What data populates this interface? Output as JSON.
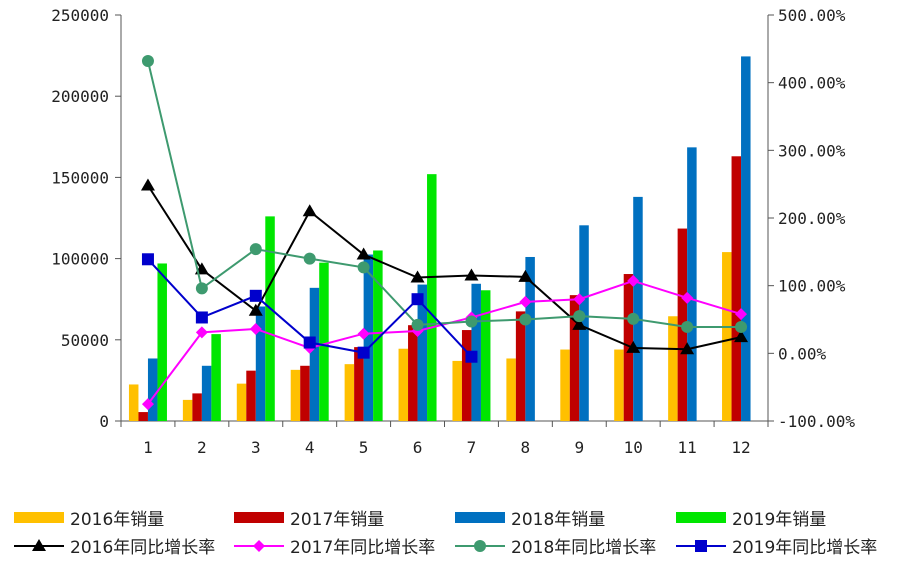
{
  "chart_data": {
    "type": "bar",
    "categories": [
      "1",
      "2",
      "3",
      "4",
      "5",
      "6",
      "7",
      "8",
      "9",
      "10",
      "11",
      "12"
    ],
    "y_left": {
      "range": [
        0,
        250000
      ],
      "ticks": [
        "0",
        "50000",
        "100000",
        "150000",
        "200000",
        "250000"
      ],
      "tick_values": [
        0,
        50000,
        100000,
        150000,
        200000,
        250000
      ]
    },
    "y_right": {
      "range": [
        -100,
        500
      ],
      "ticks": [
        "-100.00%",
        "0.00%",
        "100.00%",
        "200.00%",
        "300.00%",
        "400.00%",
        "500.00%"
      ],
      "tick_values": [
        -100,
        0,
        100,
        200,
        300,
        400,
        500
      ]
    },
    "bar_series": [
      {
        "name": "2016年销量",
        "color": "#FFC000",
        "values": [
          22500,
          13000,
          23000,
          31500,
          35000,
          44500,
          37000,
          38500,
          44000,
          44000,
          64500,
          104000
        ]
      },
      {
        "name": "2017年销量",
        "color": "#C00000",
        "values": [
          5500,
          17000,
          31000,
          34000,
          45500,
          59000,
          56000,
          67500,
          77500,
          90500,
          118500,
          163000
        ]
      },
      {
        "name": "2018年销量",
        "color": "#0070C0",
        "values": [
          38500,
          34000,
          70500,
          82000,
          102500,
          84000,
          84500,
          101000,
          120500,
          138000,
          168500,
          224500
        ]
      },
      {
        "name": "2019年销量",
        "color": "#00E600",
        "values": [
          97000,
          53500,
          126000,
          97500,
          105000,
          152000,
          80500,
          null,
          null,
          null,
          null,
          null
        ]
      }
    ],
    "line_series": [
      {
        "name": "2016年同比增长率",
        "color": "#000000",
        "marker": "triangle",
        "values": [
          248,
          124,
          63,
          210,
          146,
          112,
          115,
          113,
          42,
          8,
          6,
          24
        ]
      },
      {
        "name": "2017年同比增长率",
        "color": "#FF00FF",
        "marker": "diamond",
        "values": [
          -75,
          31,
          36,
          8,
          29,
          33,
          53,
          76,
          80,
          107,
          82,
          58
        ]
      },
      {
        "name": "2018年同比增长率",
        "color": "#3E9A6F",
        "marker": "circle",
        "values": [
          432,
          96,
          154,
          140,
          127,
          42,
          47,
          50,
          55,
          51,
          39,
          39
        ]
      },
      {
        "name": "2019年同比增长率",
        "color": "#0000CC",
        "marker": "square",
        "values": [
          139,
          53,
          85,
          16,
          1,
          80,
          -5,
          null,
          null,
          null,
          null,
          null
        ]
      }
    ]
  }
}
